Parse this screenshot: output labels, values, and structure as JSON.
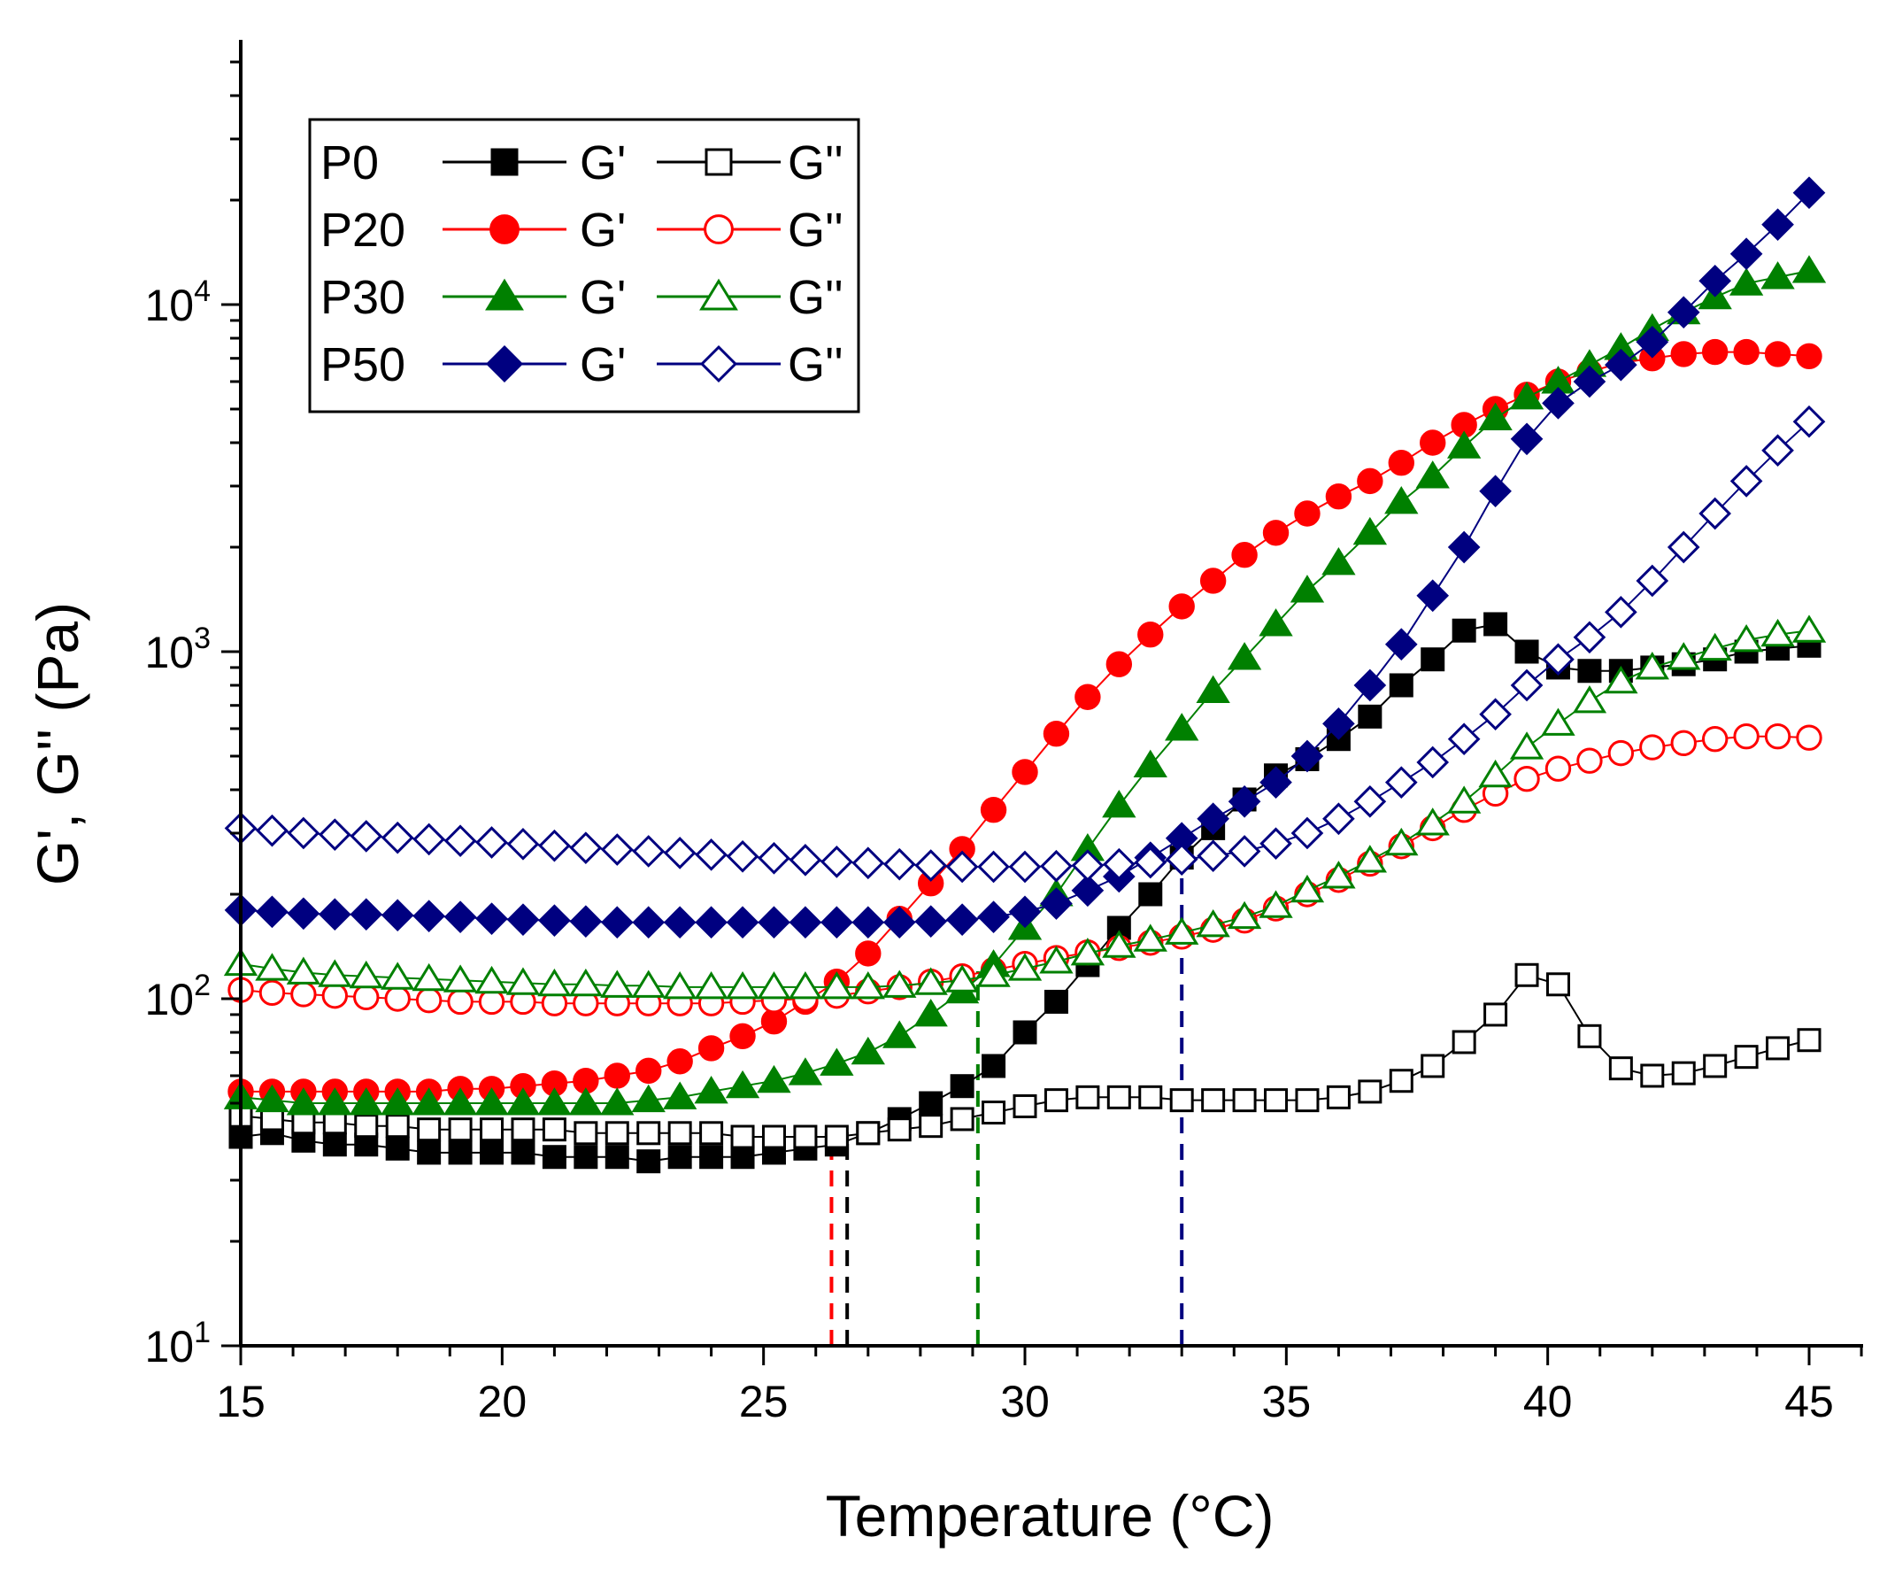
{
  "chart_data": {
    "type": "scatter",
    "title": "",
    "xlabel": "Temperature (°C)",
    "ylabel": "G', G'' (Pa)",
    "xlim": [
      15,
      46
    ],
    "ylim": [
      10,
      60000
    ],
    "yscale": "log",
    "x_ticks": [
      15,
      20,
      25,
      30,
      35,
      40,
      45
    ],
    "x_tick_labels": [
      "15",
      "20",
      "25",
      "30",
      "35",
      "40",
      "45"
    ],
    "y_ticks": [
      {
        "value": 10,
        "base": "10",
        "exp": "1"
      },
      {
        "value": 100,
        "base": "10",
        "exp": "2"
      },
      {
        "value": 1000,
        "base": "10",
        "exp": "3"
      },
      {
        "value": 10000,
        "base": "10",
        "exp": "4"
      }
    ],
    "legend": {
      "position": "top-left",
      "rows": [
        {
          "sample": "P0",
          "g1": "G'",
          "g2": "G''",
          "color": "#000000",
          "shape": "square"
        },
        {
          "sample": "P20",
          "g1": "G'",
          "g2": "G''",
          "color": "#ff0000",
          "shape": "circle"
        },
        {
          "sample": "P30",
          "g1": "G'",
          "g2": "G''",
          "color": "#008000",
          "shape": "triangle"
        },
        {
          "sample": "P50",
          "g1": "G'",
          "g2": "G''",
          "color": "#000080",
          "shape": "diamond"
        }
      ]
    },
    "x": [
      15.0,
      15.6,
      16.2,
      16.8,
      17.4,
      18.0,
      18.6,
      19.2,
      19.8,
      20.4,
      21.0,
      21.6,
      22.2,
      22.8,
      23.4,
      24.0,
      24.6,
      25.2,
      25.8,
      26.4,
      27.0,
      27.6,
      28.2,
      28.8,
      29.4,
      30.0,
      30.6,
      31.2,
      31.8,
      32.4,
      33.0,
      33.6,
      34.2,
      34.8,
      35.4,
      36.0,
      36.6,
      37.2,
      37.8,
      38.4,
      39.0,
      39.6,
      40.2,
      40.8,
      41.4,
      42.0,
      42.6,
      43.2,
      43.8,
      44.4,
      45.0
    ],
    "series": [
      {
        "name": "P0 G'",
        "sample": "P0",
        "modulus": "G'",
        "color": "#000000",
        "shape": "square",
        "filled": true,
        "values": [
          40,
          41,
          39,
          38,
          38,
          37,
          36,
          36,
          36,
          36,
          35,
          35,
          35,
          34,
          35,
          35,
          35,
          36,
          37,
          38,
          41,
          45,
          50,
          56,
          64,
          80,
          98,
          125,
          160,
          200,
          255,
          310,
          375,
          440,
          490,
          560,
          650,
          800,
          950,
          1150,
          1200,
          1000,
          900,
          880,
          880,
          900,
          920,
          950,
          1000,
          1020,
          1040
        ]
      },
      {
        "name": "P0 G''",
        "sample": "P0",
        "modulus": "G''",
        "color": "#000000",
        "shape": "square",
        "filled": false,
        "values": [
          46,
          45,
          44,
          44,
          43,
          43,
          42,
          42,
          42,
          42,
          42,
          41,
          41,
          41,
          41,
          41,
          40,
          40,
          40,
          40,
          41,
          42,
          43,
          45,
          47,
          49,
          51,
          52,
          52,
          52,
          51,
          51,
          51,
          51,
          51,
          52,
          54,
          58,
          64,
          75,
          90,
          117,
          110,
          78,
          63,
          60,
          61,
          64,
          68,
          72,
          76
        ]
      },
      {
        "name": "P20 G'",
        "sample": "P20",
        "modulus": "G'",
        "color": "#ff0000",
        "shape": "circle",
        "filled": true,
        "values": [
          54,
          54,
          54,
          54,
          54,
          54,
          54,
          55,
          55,
          56,
          57,
          58,
          60,
          62,
          66,
          72,
          78,
          86,
          98,
          112,
          135,
          170,
          215,
          270,
          350,
          450,
          580,
          740,
          920,
          1120,
          1350,
          1600,
          1900,
          2200,
          2500,
          2800,
          3100,
          3500,
          4000,
          4500,
          5000,
          5500,
          6000,
          6400,
          6800,
          7000,
          7200,
          7300,
          7300,
          7200,
          7100
        ]
      },
      {
        "name": "P20 G''",
        "sample": "P20",
        "modulus": "G''",
        "color": "#ff0000",
        "shape": "circle",
        "filled": false,
        "values": [
          106,
          104,
          103,
          102,
          101,
          100,
          99,
          98,
          98,
          98,
          97,
          97,
          97,
          97,
          97,
          97,
          98,
          99,
          100,
          102,
          105,
          108,
          112,
          116,
          121,
          126,
          131,
          136,
          140,
          145,
          151,
          158,
          168,
          182,
          200,
          220,
          245,
          275,
          310,
          350,
          390,
          430,
          460,
          485,
          510,
          530,
          545,
          560,
          570,
          570,
          565
        ]
      },
      {
        "name": "P30 G'",
        "sample": "P30",
        "modulus": "G'",
        "color": "#008000",
        "shape": "triangle",
        "filled": true,
        "values": [
          52,
          51,
          50,
          50,
          50,
          50,
          50,
          50,
          50,
          50,
          50,
          50,
          50,
          51,
          52,
          54,
          56,
          58,
          61,
          65,
          70,
          78,
          90,
          105,
          125,
          160,
          200,
          270,
          360,
          470,
          600,
          770,
          960,
          1200,
          1500,
          1800,
          2200,
          2700,
          3200,
          3900,
          4700,
          5400,
          6000,
          6700,
          7500,
          8500,
          9500,
          10500,
          11500,
          12000,
          12500
        ]
      },
      {
        "name": "P30 G''",
        "sample": "P30",
        "modulus": "G''",
        "color": "#008000",
        "shape": "triangle",
        "filled": false,
        "values": [
          126,
          122,
          119,
          117,
          116,
          115,
          114,
          113,
          112,
          111,
          110,
          110,
          109,
          109,
          108,
          108,
          108,
          108,
          108,
          108,
          108,
          109,
          111,
          113,
          117,
          122,
          128,
          135,
          142,
          148,
          155,
          163,
          172,
          185,
          205,
          225,
          250,
          280,
          320,
          370,
          440,
          530,
          620,
          720,
          820,
          900,
          960,
          1020,
          1080,
          1120,
          1150
        ]
      },
      {
        "name": "P50 G'",
        "sample": "P50",
        "modulus": "G'",
        "color": "#000080",
        "shape": "diamond",
        "filled": true,
        "values": [
          180,
          178,
          176,
          175,
          175,
          174,
          173,
          172,
          170,
          169,
          168,
          167,
          166,
          166,
          166,
          166,
          166,
          166,
          166,
          166,
          166,
          166,
          167,
          169,
          172,
          178,
          188,
          205,
          225,
          255,
          290,
          330,
          370,
          420,
          500,
          620,
          800,
          1050,
          1450,
          2000,
          2900,
          4100,
          5200,
          6000,
          6700,
          7800,
          9500,
          11700,
          14000,
          17000,
          21000
        ]
      },
      {
        "name": "P50 G''",
        "sample": "P50",
        "modulus": "G''",
        "color": "#000080",
        "shape": "diamond",
        "filled": false,
        "values": [
          310,
          305,
          300,
          297,
          294,
          291,
          288,
          285,
          282,
          279,
          276,
          272,
          269,
          266,
          263,
          260,
          257,
          254,
          251,
          248,
          246,
          244,
          242,
          240,
          240,
          240,
          241,
          242,
          244,
          247,
          252,
          258,
          266,
          280,
          300,
          330,
          370,
          420,
          480,
          560,
          660,
          800,
          950,
          1100,
          1300,
          1600,
          2000,
          2500,
          3100,
          3800,
          4600
        ]
      }
    ],
    "annotations": [
      {
        "type": "dashed-vline",
        "x": 26.3,
        "y_from": 10,
        "y_to": 38,
        "color": "#ff0000"
      },
      {
        "type": "dashed-vline",
        "x": 26.6,
        "y_from": 10,
        "y_to": 41,
        "color": "#000000"
      },
      {
        "type": "dashed-vline",
        "x": 29.1,
        "y_from": 10,
        "y_to": 120,
        "color": "#008000"
      },
      {
        "type": "dashed-vline",
        "x": 33.0,
        "y_from": 10,
        "y_to": 240,
        "color": "#000080"
      }
    ]
  }
}
